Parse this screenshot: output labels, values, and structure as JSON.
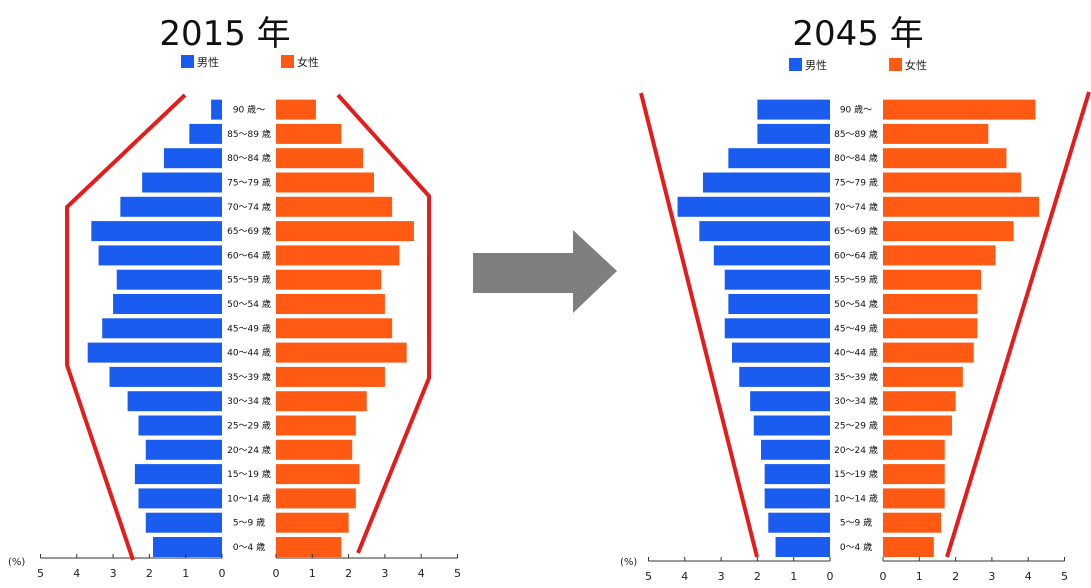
{
  "chart_data": [
    {
      "type": "bar",
      "title": "2015 年",
      "legend": [
        "男性",
        "女性"
      ],
      "unit_label": "(%)",
      "age_groups": [
        "0〜4 歳",
        "5〜9 歳",
        "10〜14 歳",
        "15〜19 歳",
        "20〜24 歳",
        "25〜29 歳",
        "30〜34 歳",
        "35〜39 歳",
        "40〜44 歳",
        "45〜49 歳",
        "50〜54 歳",
        "55〜59 歳",
        "60〜64 歳",
        "65〜69 歳",
        "70〜74 歳",
        "75〜79 歳",
        "80〜84 歳",
        "85〜89 歳",
        "90 歳〜"
      ],
      "series": [
        {
          "name": "男性",
          "values": [
            1.9,
            2.1,
            2.3,
            2.4,
            2.1,
            2.3,
            2.6,
            3.1,
            3.7,
            3.3,
            3.0,
            2.9,
            3.4,
            3.6,
            2.8,
            2.2,
            1.6,
            0.9,
            0.3
          ]
        },
        {
          "name": "女性",
          "values": [
            1.8,
            2.0,
            2.2,
            2.3,
            2.1,
            2.2,
            2.5,
            3.0,
            3.6,
            3.2,
            3.0,
            2.9,
            3.4,
            3.8,
            3.2,
            2.7,
            2.4,
            1.8,
            1.1
          ]
        }
      ],
      "xlim": [
        0,
        5
      ],
      "ticks": [
        "0",
        "1",
        "2",
        "3",
        "4",
        "5"
      ],
      "colors": {
        "male": "#1a5cf0",
        "female": "#ff5a14",
        "outline": "#e51c1c"
      }
    },
    {
      "type": "bar",
      "title": "2045 年",
      "legend": [
        "男性",
        "女性"
      ],
      "unit_label": "(%)",
      "age_groups": [
        "0〜4 歳",
        "5〜9 歳",
        "10〜14 歳",
        "15〜19 歳",
        "20〜24 歳",
        "25〜29 歳",
        "30〜34 歳",
        "35〜39 歳",
        "40〜44 歳",
        "45〜49 歳",
        "50〜54 歳",
        "55〜59 歳",
        "60〜64 歳",
        "65〜69 歳",
        "70〜74 歳",
        "75〜79 歳",
        "80〜84 歳",
        "85〜89 歳",
        "90 歳〜"
      ],
      "series": [
        {
          "name": "男性",
          "values": [
            1.5,
            1.7,
            1.8,
            1.8,
            1.9,
            2.1,
            2.2,
            2.5,
            2.7,
            2.9,
            2.8,
            2.9,
            3.2,
            3.6,
            4.2,
            3.5,
            2.8,
            2.0,
            2.0
          ]
        },
        {
          "name": "女性",
          "values": [
            1.4,
            1.6,
            1.7,
            1.7,
            1.7,
            1.9,
            2.0,
            2.2,
            2.5,
            2.6,
            2.6,
            2.7,
            3.1,
            3.6,
            4.3,
            3.8,
            3.4,
            2.9,
            4.2
          ]
        }
      ],
      "xlim": [
        0,
        5
      ],
      "ticks": [
        "0",
        "1",
        "2",
        "3",
        "4",
        "5"
      ],
      "colors": {
        "male": "#1a5cf0",
        "female": "#ff5a14",
        "outline": "#e51c1c"
      }
    }
  ],
  "arrow_color": "#7f7f7f"
}
